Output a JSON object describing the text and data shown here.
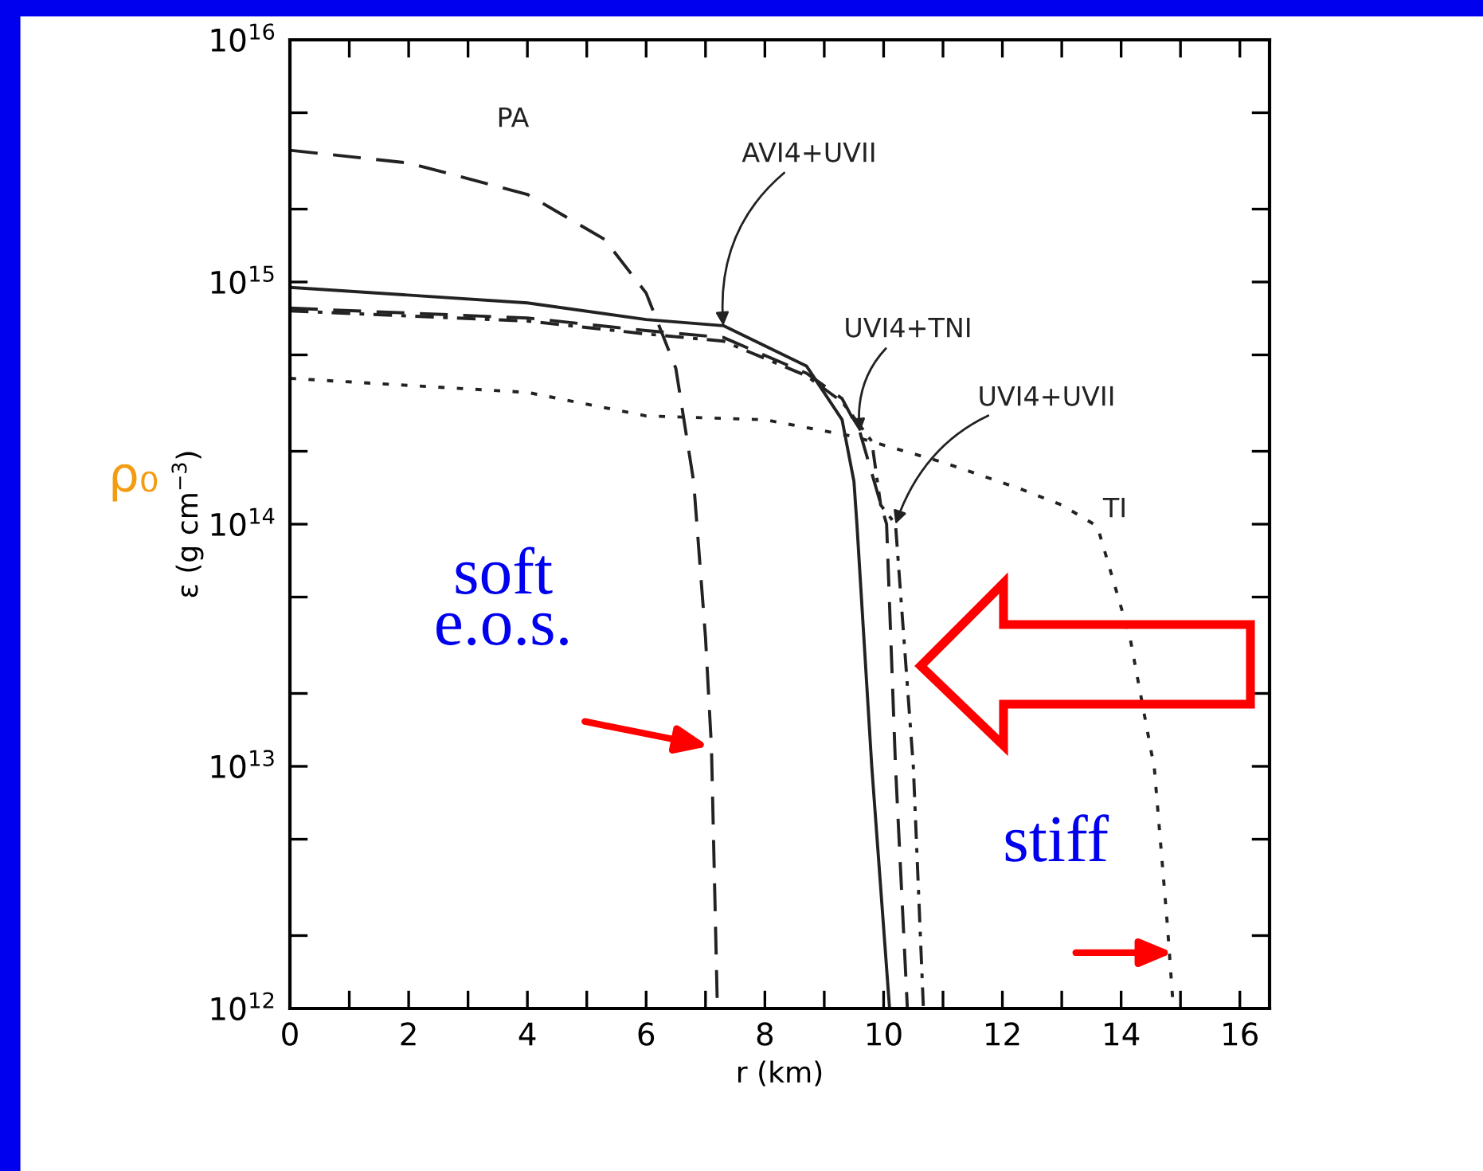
{
  "chart_data": {
    "type": "line",
    "xlabel": "r (km)",
    "ylabel": "ε (g cm$^{−3}$)",
    "log": "y",
    "grid": false,
    "legend": false,
    "xlim": [
      0,
      16.5
    ],
    "xticks": [
      0,
      {
        "value": 1,
        "label": null
      },
      2,
      {
        "value": 3,
        "label": null
      },
      4,
      {
        "value": 5,
        "label": null
      },
      6,
      {
        "value": 7,
        "label": null
      },
      8,
      {
        "value": 9,
        "label": null
      },
      10,
      {
        "value": 11,
        "label": null
      },
      12,
      {
        "value": 13,
        "label": null
      },
      14,
      {
        "value": 15,
        "label": null
      },
      16
    ],
    "ylim": [
      1000000000000.0,
      1e+16
    ],
    "yticks": [
      {
        "value": 1000000000000.0,
        "label": "10$^{12}$"
      },
      {
        "value": 2000000000000.0,
        "label": null
      },
      {
        "value": 5000000000000.0,
        "label": null
      },
      {
        "value": 10000000000000.0,
        "label": "10$^{13}$"
      },
      {
        "value": 20000000000000.0,
        "label": null
      },
      {
        "value": 50000000000000.0,
        "label": null
      },
      {
        "value": 100000000000000.0,
        "label": "10$^{14}$"
      },
      {
        "value": 200000000000000.0,
        "label": null
      },
      {
        "value": 500000000000000.0,
        "label": null
      },
      {
        "value": 1000000000000000.0,
        "label": "10$^{15}$"
      },
      {
        "value": 2000000000000000.0,
        "label": null
      },
      {
        "value": 5000000000000000.0,
        "label": null
      },
      {
        "value": 1e+16,
        "label": "10$^{16}$"
      }
    ],
    "series": [
      {
        "name": "PA",
        "color": "#222222",
        "line_style": "dashed",
        "x": [
          0,
          2,
          4,
          5.3,
          6,
          6.5,
          6.8,
          7.0,
          7.1,
          7.2
        ],
        "values": [
          3500000000000000.0,
          3100000000000000.0,
          2300000000000000.0,
          1500000000000000.0,
          900000000000000.0,
          440000000000000.0,
          150000000000000.0,
          34000000000000.0,
          12000000000000.0,
          1000000000000.0
        ]
      },
      {
        "name": "AVI4+UVII",
        "color": "#222222",
        "line_style": "solid",
        "x": [
          0,
          4,
          6,
          7.3,
          8.7,
          9.3,
          9.5,
          9.55,
          9.8,
          10.1
        ],
        "values": [
          950000000000000.0,
          820000000000000.0,
          700000000000000.0,
          660000000000000.0,
          450000000000000.0,
          270000000000000.0,
          150000000000000.0,
          100000000000000.0,
          10000000000000.0,
          1000000000000.0
        ]
      },
      {
        "name": "UVI4+TNI",
        "color": "#222222",
        "line_style": "dashed",
        "x": [
          0,
          4,
          6,
          7.3,
          8.7,
          9.3,
          9.6,
          10.05,
          10.2,
          10.4
        ],
        "values": [
          780000000000000.0,
          710000000000000.0,
          630000000000000.0,
          590000000000000.0,
          420000000000000.0,
          330000000000000.0,
          240000000000000.0,
          100000000000000.0,
          10000000000000.0,
          1000000000000.0
        ]
      },
      {
        "name": "UVI4+UVII",
        "color": "#222222",
        "line_style": "dashdot",
        "x": [
          0,
          4,
          6,
          7.3,
          8.7,
          9.3,
          9.8,
          9.95,
          10.2,
          10.5,
          10.67
        ],
        "values": [
          760000000000000.0,
          690000000000000.0,
          610000000000000.0,
          570000000000000.0,
          410000000000000.0,
          320000000000000.0,
          220000000000000.0,
          120000000000000.0,
          100000000000000.0,
          10000000000000.0,
          1000000000000.0
        ]
      },
      {
        "name": "TI",
        "color": "#222222",
        "line_style": "dotted",
        "x": [
          0,
          4,
          6,
          8,
          9.5,
          11,
          12.3,
          13.0,
          13.6,
          14.15,
          14.56,
          14.78,
          14.88
        ],
        "values": [
          400000000000000.0,
          350000000000000.0,
          280000000000000.0,
          270000000000000.0,
          230000000000000.0,
          180000000000000.0,
          140000000000000.0,
          120000000000000.0,
          98000000000000.0,
          34000000000000.0,
          9800000000000.0,
          2200000000000.0,
          1000000000000.0
        ]
      }
    ],
    "annotations": [
      "ρ₀",
      {
        "text": "soft\ne.o.s.",
        "x": 7.13,
        "y": 12000000000000.0
      },
      {
        "text": "stiff",
        "x": 14.95,
        "y": 1700000000000.0
      }
    ]
  }
}
